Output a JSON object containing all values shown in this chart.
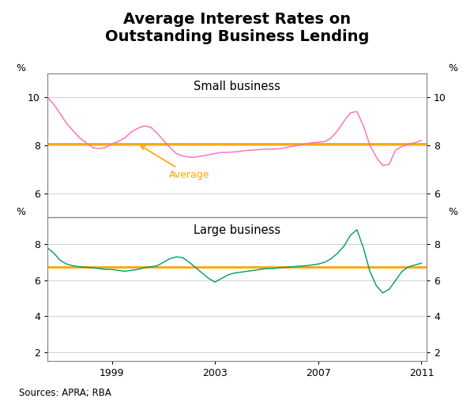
{
  "title": "Average Interest Rates on\nOutstanding Business Lending",
  "title_fontsize": 14,
  "source_text": "Sources: APRA; RBA",
  "small_business_label": "Small business",
  "large_business_label": "Large business",
  "average_label": "Average",
  "small_avg": 8.05,
  "large_avg": 6.75,
  "small_color": "#FF69B4",
  "large_color": "#009966",
  "avg_color": "#FFA500",
  "small_ylim": [
    5.0,
    11.0
  ],
  "small_yticks": [
    6,
    8,
    10
  ],
  "large_ylim": [
    1.5,
    9.5
  ],
  "large_yticks": [
    2,
    4,
    6,
    8
  ],
  "xmin": 1996.5,
  "xmax": 2011.2,
  "xticks": [
    1999,
    2003,
    2007,
    2011
  ],
  "small_business_x": [
    1996.5,
    1996.75,
    1997.0,
    1997.25,
    1997.5,
    1997.75,
    1998.0,
    1998.25,
    1998.5,
    1998.75,
    1999.0,
    1999.25,
    1999.5,
    1999.75,
    2000.0,
    2000.25,
    2000.5,
    2000.75,
    2001.0,
    2001.25,
    2001.5,
    2001.75,
    2002.0,
    2002.25,
    2002.5,
    2002.75,
    2003.0,
    2003.25,
    2003.5,
    2003.75,
    2004.0,
    2004.25,
    2004.5,
    2004.75,
    2005.0,
    2005.25,
    2005.5,
    2005.75,
    2006.0,
    2006.25,
    2006.5,
    2006.75,
    2007.0,
    2007.25,
    2007.5,
    2007.75,
    2008.0,
    2008.25,
    2008.5,
    2008.75,
    2009.0,
    2009.25,
    2009.5,
    2009.75,
    2010.0,
    2010.25,
    2010.5,
    2010.75,
    2011.0
  ],
  "small_business_y": [
    10.0,
    9.7,
    9.3,
    8.9,
    8.6,
    8.3,
    8.1,
    7.9,
    7.85,
    7.9,
    8.05,
    8.15,
    8.3,
    8.55,
    8.7,
    8.8,
    8.75,
    8.5,
    8.2,
    7.9,
    7.65,
    7.55,
    7.5,
    7.5,
    7.55,
    7.6,
    7.65,
    7.7,
    7.7,
    7.72,
    7.75,
    7.78,
    7.8,
    7.82,
    7.83,
    7.84,
    7.85,
    7.9,
    7.95,
    8.0,
    8.05,
    8.1,
    8.12,
    8.15,
    8.3,
    8.6,
    9.0,
    9.35,
    9.4,
    8.8,
    8.0,
    7.5,
    7.15,
    7.2,
    7.8,
    7.95,
    8.05,
    8.1,
    8.2
  ],
  "large_business_x": [
    1996.5,
    1996.75,
    1997.0,
    1997.25,
    1997.5,
    1997.75,
    1998.0,
    1998.25,
    1998.5,
    1998.75,
    1999.0,
    1999.25,
    1999.5,
    1999.75,
    2000.0,
    2000.25,
    2000.5,
    2000.75,
    2001.0,
    2001.25,
    2001.5,
    2001.75,
    2002.0,
    2002.25,
    2002.5,
    2002.75,
    2003.0,
    2003.25,
    2003.5,
    2003.75,
    2004.0,
    2004.25,
    2004.5,
    2004.75,
    2005.0,
    2005.25,
    2005.5,
    2005.75,
    2006.0,
    2006.25,
    2006.5,
    2006.75,
    2007.0,
    2007.25,
    2007.5,
    2007.75,
    2008.0,
    2008.25,
    2008.5,
    2008.75,
    2009.0,
    2009.25,
    2009.5,
    2009.75,
    2010.0,
    2010.25,
    2010.5,
    2010.75,
    2011.0
  ],
  "large_business_y": [
    7.8,
    7.5,
    7.1,
    6.9,
    6.8,
    6.75,
    6.72,
    6.7,
    6.65,
    6.6,
    6.6,
    6.55,
    6.5,
    6.55,
    6.6,
    6.7,
    6.75,
    6.8,
    7.0,
    7.2,
    7.3,
    7.25,
    7.0,
    6.7,
    6.4,
    6.1,
    5.9,
    6.1,
    6.3,
    6.4,
    6.45,
    6.5,
    6.55,
    6.6,
    6.65,
    6.65,
    6.7,
    6.72,
    6.75,
    6.78,
    6.8,
    6.85,
    6.9,
    7.0,
    7.2,
    7.5,
    7.9,
    8.5,
    8.8,
    7.8,
    6.5,
    5.7,
    5.3,
    5.5,
    6.0,
    6.5,
    6.75,
    6.85,
    6.95
  ],
  "background_color": "#ffffff",
  "grid_color": "#d0d0d0"
}
